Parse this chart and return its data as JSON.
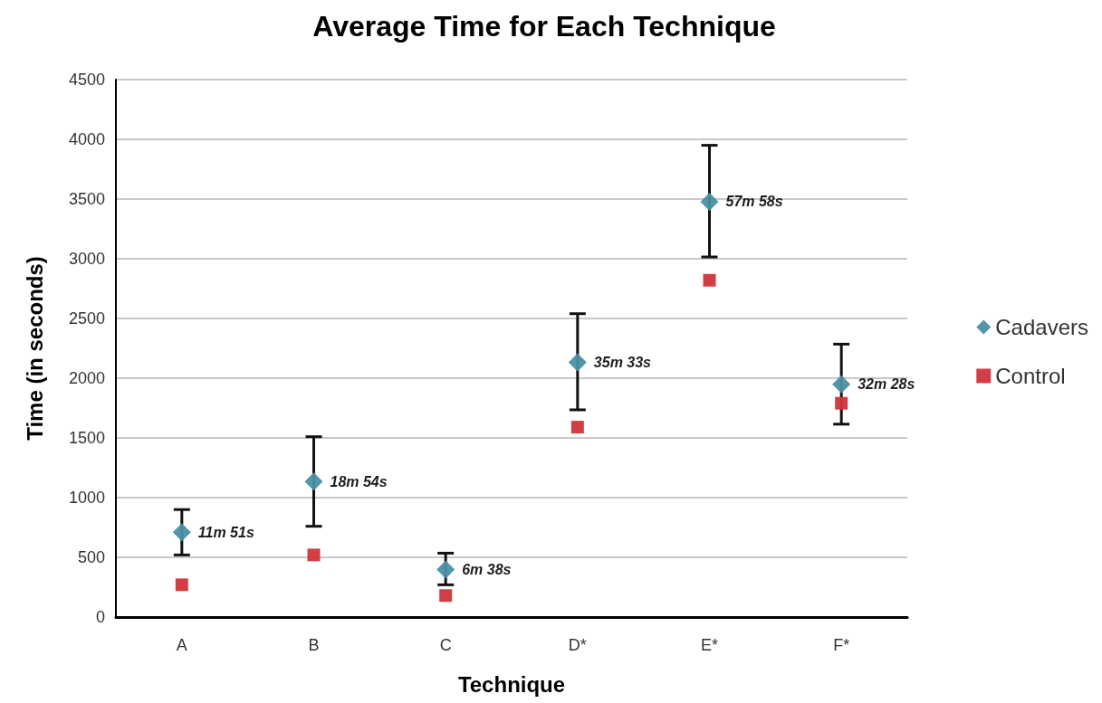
{
  "chart_data": {
    "type": "scatter",
    "title": "Average Time for Each Technique",
    "xlabel": "Technique",
    "ylabel": "Time (in seconds)",
    "categories": [
      "A",
      "B",
      "C",
      "D*",
      "E*",
      "F*"
    ],
    "series": [
      {
        "name": "Cadavers",
        "color": "#4a90a4",
        "marker": "diamond",
        "values": [
          711,
          1134,
          398,
          2133,
          3478,
          1948
        ],
        "errors": [
          [
            520,
            900
          ],
          [
            760,
            1510
          ],
          [
            270,
            535
          ],
          [
            1735,
            2540
          ],
          [
            3015,
            3950
          ],
          [
            1615,
            2285
          ]
        ],
        "value_labels": [
          "11m 51s",
          "18m 54s",
          "6m 38s",
          "35m 33s",
          "57m 58s",
          "32m 28s"
        ]
      },
      {
        "name": "Control",
        "color": "#d0343b",
        "marker": "square",
        "values": [
          270,
          520,
          180,
          1590,
          2820,
          1790
        ]
      }
    ],
    "ylim": [
      0,
      4500
    ],
    "yticks": [
      0,
      500,
      1000,
      1500,
      2000,
      2500,
      3000,
      3500,
      4000,
      4500
    ],
    "grid": "y",
    "legend": "right"
  }
}
